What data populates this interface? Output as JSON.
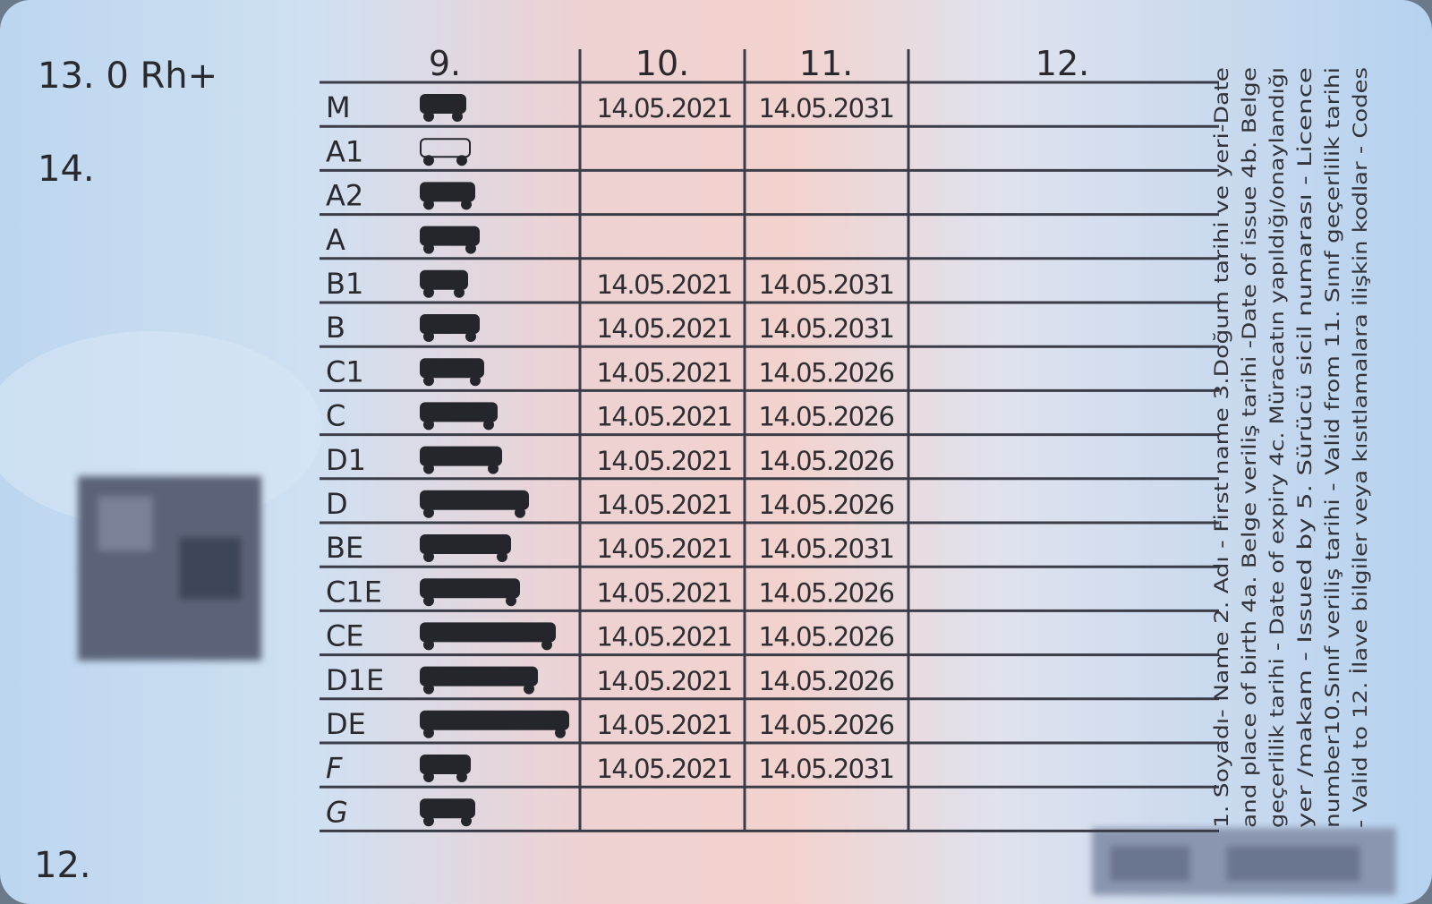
{
  "left": {
    "blood": "13. 0 Rh+",
    "field14": "14.",
    "field12": "12."
  },
  "table": {
    "headers": [
      "9.",
      "10.",
      "11.",
      "12."
    ],
    "rows": [
      [
        "M",
        "14.05.2021",
        "14.05.2031"
      ],
      [
        "A1",
        null,
        null
      ],
      [
        "A2",
        null,
        null
      ],
      [
        "A",
        null,
        null
      ],
      [
        "B1",
        "14.05.2021",
        "14.05.2031"
      ],
      [
        "B",
        "14.05.2021",
        "14.05.2031"
      ],
      [
        "C1",
        "14.05.2021",
        "14.05.2026"
      ],
      [
        "C",
        "14.05.2021",
        "14.05.2026"
      ],
      [
        "D1",
        "14.05.2021",
        "14.05.2026"
      ],
      [
        "D",
        "14.05.2021",
        "14.05.2026"
      ],
      [
        "BE",
        "14.05.2021",
        "14.05.2031"
      ],
      [
        "C1E",
        "14.05.2021",
        "14.05.2026"
      ],
      [
        "CE",
        "14.05.2021",
        "14.05.2026"
      ],
      [
        "D1E",
        "14.05.2021",
        "14.05.2026"
      ],
      [
        "DE",
        "14.05.2021",
        "14.05.2026"
      ],
      [
        "F",
        "14.05.2021",
        "14.05.2031"
      ],
      [
        "G",
        null,
        null
      ]
    ]
  },
  "legend": [
    "1. Soyadı- Name 2. Adı - First name  3.Doğum tarihi ve yeri-Date",
    "and place of birth 4a. Belge veriliş tarihi -Date of issue 4b. Belge",
    "geçerlilik tarihi - Date of expiry 4c. Müracatın yapıldığı/onaylandığı",
    "yer /makam - Issued by 5. Sürücü sicil numarası - Licence",
    "number10.Sınıf veriliş tarihi - Valid from 11. Sınıf geçerlilik tarihi",
    "- Valid to 12. İlave bilgiler veya kısıtlamalara ilişkin kodlar - Codes"
  ]
}
